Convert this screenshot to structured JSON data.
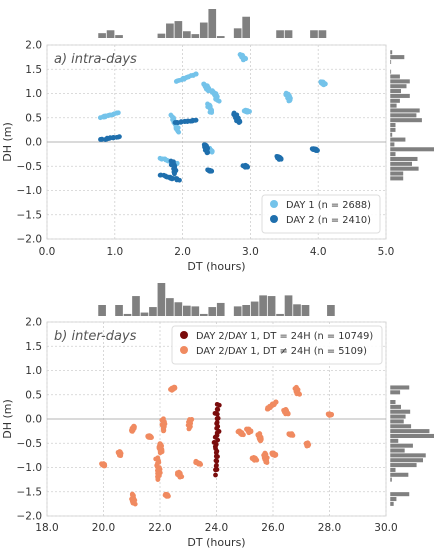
{
  "colors": {
    "panel_bg": "#ffffff",
    "frame": "#d9d9d9",
    "grid": "#cfcfcf",
    "zero_line": "#b5b5b5",
    "hist": "#808080",
    "text": "#333333",
    "title_text": "#555555"
  },
  "chart_data": [
    {
      "type": "scatter",
      "title": "a) intra-days",
      "xlabel": "DT (hours)",
      "ylabel": "DH (m)",
      "xlim": [
        0.0,
        5.0
      ],
      "ylim": [
        -2.0,
        2.0
      ],
      "xticks": [
        "0.0",
        "1.0",
        "2.0",
        "3.0",
        "4.0",
        "5.0"
      ],
      "yticks": [
        "−2.0",
        "−1.5",
        "−1.0",
        "−0.5",
        "0.0",
        "0.5",
        "1.0",
        "1.5",
        "2.0"
      ],
      "grid": true,
      "legend_position": "lower-right",
      "marginal_histograms": true,
      "series": [
        {
          "name": "DAY 1 (n = 2688)",
          "color": "#74c3ea",
          "clusters": [
            {
              "x": [
                0.8,
                1.05
              ],
              "y": [
                0.5,
                0.6
              ]
            },
            {
              "x": [
                1.68,
                1.93
              ],
              "y": [
                -0.33,
                -0.45
              ]
            },
            {
              "x": [
                1.84,
                1.95
              ],
              "y": [
                0.55,
                0.2
              ]
            },
            {
              "x": [
                1.92,
                2.2
              ],
              "y": [
                1.25,
                1.4
              ]
            },
            {
              "x": [
                2.33,
                2.38
              ],
              "y": [
                1.2,
                1.05
              ]
            },
            {
              "x": [
                2.38,
                2.42
              ],
              "y": [
                0.78,
                0.6
              ]
            },
            {
              "x": [
                2.38,
                2.42
              ],
              "y": [
                -0.12,
                -0.2
              ]
            },
            {
              "x": [
                2.45,
                2.52
              ],
              "y": [
                1.05,
                0.85
              ]
            },
            {
              "x": [
                2.86,
                2.92
              ],
              "y": [
                1.8,
                1.7
              ]
            },
            {
              "x": [
                2.93,
                2.97
              ],
              "y": [
                0.65,
                0.62
              ]
            },
            {
              "x": [
                3.54,
                3.58
              ],
              "y": [
                1.0,
                0.85
              ]
            },
            {
              "x": [
                4.05,
                4.09
              ],
              "y": [
                1.24,
                1.18
              ]
            }
          ]
        },
        {
          "name": "DAY 2 (n = 2410)",
          "color": "#1f6fad",
          "clusters": [
            {
              "x": [
                0.8,
                1.05
              ],
              "y": [
                0.05,
                0.1
              ]
            },
            {
              "x": [
                1.68,
                1.93
              ],
              "y": [
                -0.68,
                -0.78
              ]
            },
            {
              "x": [
                1.84,
                1.9
              ],
              "y": [
                -0.4,
                -0.65
              ]
            },
            {
              "x": [
                1.9,
                2.2
              ],
              "y": [
                0.4,
                0.45
              ]
            },
            {
              "x": [
                2.33,
                2.37
              ],
              "y": [
                -0.05,
                -0.22
              ]
            },
            {
              "x": [
                2.38,
                2.42
              ],
              "y": [
                -0.58,
                -0.6
              ]
            },
            {
              "x": [
                2.77,
                2.83
              ],
              "y": [
                0.6,
                0.4
              ]
            },
            {
              "x": [
                2.9,
                2.95
              ],
              "y": [
                -0.48,
                -0.52
              ]
            },
            {
              "x": [
                3.4,
                3.44
              ],
              "y": [
                -0.3,
                -0.36
              ]
            },
            {
              "x": [
                3.93,
                3.97
              ],
              "y": [
                -0.14,
                -0.18
              ]
            }
          ]
        }
      ]
    },
    {
      "type": "scatter",
      "title": "b) inter-days",
      "xlabel": "DT (hours)",
      "ylabel": "DH (m)",
      "xlim": [
        18.0,
        30.0
      ],
      "ylim": [
        -2.0,
        2.0
      ],
      "xticks": [
        "18.0",
        "20.0",
        "22.0",
        "24.0",
        "26.0",
        "28.0",
        "30.0"
      ],
      "yticks": [
        "−2.0",
        "−1.5",
        "−1.0",
        "−0.5",
        "0.0",
        "0.5",
        "1.0",
        "1.5",
        "2.0"
      ],
      "grid": true,
      "legend_position": "upper-right",
      "marginal_histograms": true,
      "series": [
        {
          "name": "DAY 2/DAY 1, DT = 24H (n = 10749)",
          "color": "#7a0c0c",
          "clusters": [
            {
              "x": [
                23.95,
                24.0
              ],
              "y": [
                -1.15,
                0.3
              ]
            },
            {
              "x": [
                24.0,
                24.06
              ],
              "y": [
                -1.05,
                0.28
              ]
            }
          ]
        },
        {
          "name": "DAY 2/DAY 1, DT ≠ 24H (n = 5109)",
          "color": "#f08a60",
          "clusters": [
            {
              "x": [
                19.98,
                20.02
              ],
              "y": [
                -0.92,
                -0.96
              ]
            },
            {
              "x": [
                20.55,
                20.6
              ],
              "y": [
                -0.68,
                -0.75
              ]
            },
            {
              "x": [
                21.0,
                21.1
              ],
              "y": [
                -1.55,
                -1.75
              ]
            },
            {
              "x": [
                21.0,
                21.05
              ],
              "y": [
                -0.25,
                -0.15
              ]
            },
            {
              "x": [
                21.6,
                21.65
              ],
              "y": [
                -0.35,
                -0.38
              ]
            },
            {
              "x": [
                21.9,
                21.98
              ],
              "y": [
                -0.8,
                -1.25
              ]
            },
            {
              "x": [
                21.98,
                22.05
              ],
              "y": [
                -0.5,
                -0.7
              ]
            },
            {
              "x": [
                22.1,
                22.15
              ],
              "y": [
                0.0,
                -0.25
              ]
            },
            {
              "x": [
                22.2,
                22.3
              ],
              "y": [
                -1.55,
                -1.6
              ]
            },
            {
              "x": [
                22.4,
                22.5
              ],
              "y": [
                0.6,
                0.65
              ]
            },
            {
              "x": [
                22.65,
                22.72
              ],
              "y": [
                -1.1,
                -1.2
              ]
            },
            {
              "x": [
                23.0,
                23.1
              ],
              "y": [
                -0.2,
                0.0
              ]
            },
            {
              "x": [
                23.25,
                23.4
              ],
              "y": [
                -0.88,
                -0.93
              ]
            },
            {
              "x": [
                24.8,
                24.9
              ],
              "y": [
                -0.25,
                -0.32
              ]
            },
            {
              "x": [
                25.1,
                25.2
              ],
              "y": [
                -0.2,
                -0.28
              ]
            },
            {
              "x": [
                25.3,
                25.38
              ],
              "y": [
                -0.8,
                -0.85
              ]
            },
            {
              "x": [
                25.5,
                25.58
              ],
              "y": [
                -0.3,
                -0.45
              ]
            },
            {
              "x": [
                25.7,
                25.8
              ],
              "y": [
                -0.7,
                -0.9
              ]
            },
            {
              "x": [
                25.8,
                26.1
              ],
              "y": [
                0.2,
                0.35
              ]
            },
            {
              "x": [
                26.0,
                26.08
              ],
              "y": [
                -0.7,
                -0.75
              ]
            },
            {
              "x": [
                26.4,
                26.5
              ],
              "y": [
                0.2,
                0.1
              ]
            },
            {
              "x": [
                26.8,
                26.9
              ],
              "y": [
                0.65,
                0.5
              ]
            },
            {
              "x": [
                26.6,
                26.65
              ],
              "y": [
                -0.3,
                -0.33
              ]
            },
            {
              "x": [
                27.2,
                27.25
              ],
              "y": [
                -0.5,
                -0.55
              ]
            },
            {
              "x": [
                28.0,
                28.04
              ],
              "y": [
                0.1,
                0.08
              ]
            }
          ]
        }
      ]
    }
  ]
}
